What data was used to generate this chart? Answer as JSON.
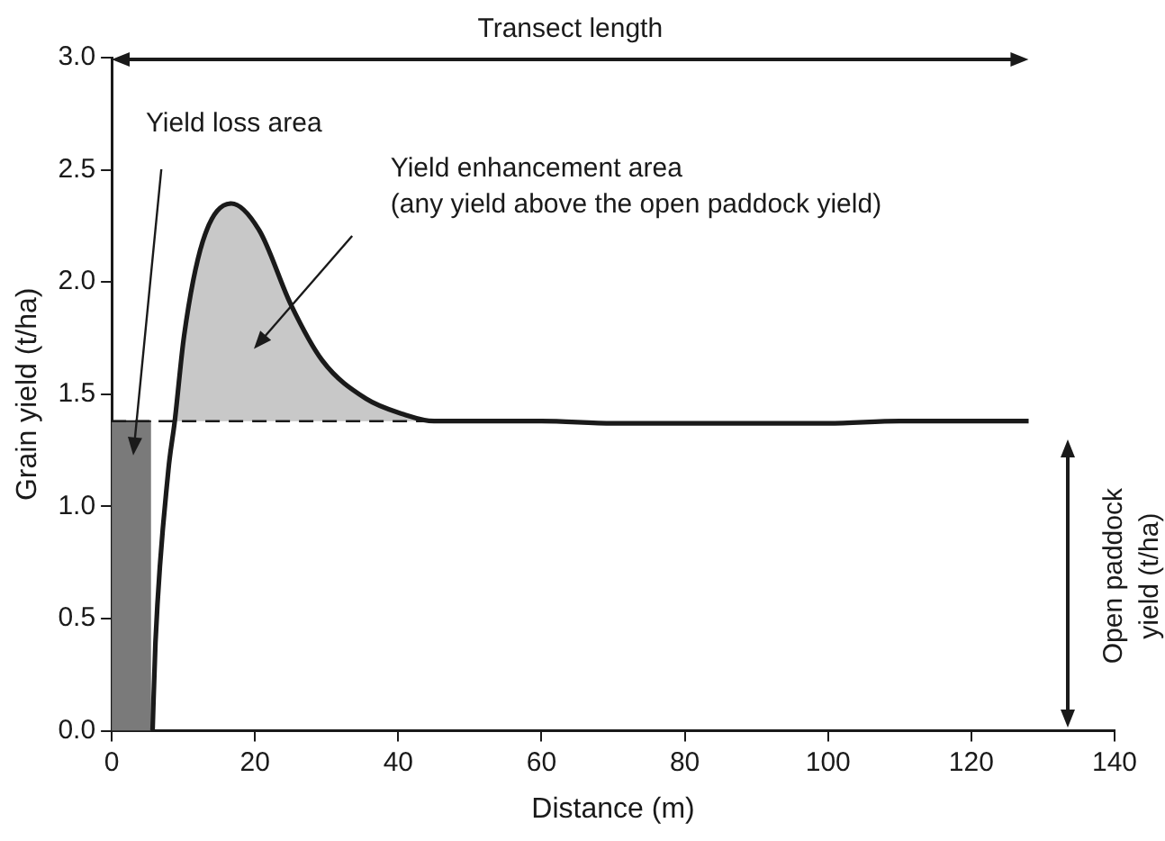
{
  "chart_data": {
    "type": "line",
    "xlabel": "Distance (m)",
    "ylabel": "Grain yield (t/ha)",
    "xlim": [
      0,
      140
    ],
    "xticks": [
      0,
      20,
      40,
      60,
      80,
      100,
      120,
      140
    ],
    "ylim": [
      0,
      3
    ],
    "yticks": [
      {
        "value": 0,
        "label": "0.0"
      },
      {
        "value": 0.5,
        "label": "0.5"
      },
      {
        "value": 1,
        "label": "1.0"
      },
      {
        "value": 1.5,
        "label": "1.5"
      },
      {
        "value": 2,
        "label": "2.0"
      },
      {
        "value": 2.5,
        "label": "2.5"
      },
      {
        "value": 3,
        "label": "3.0"
      }
    ],
    "series": [
      {
        "type": "line",
        "color": "#1a1a1a",
        "x": [
          5.7,
          6.1,
          7.9,
          8.8,
          10.1,
          12.7,
          16.7,
          20.6,
          25,
          29.4,
          35.5,
          40.8,
          45,
          60,
          70,
          80,
          90,
          100,
          110,
          120,
          128
        ],
        "values": [
          0,
          0.39,
          1.16,
          1.38,
          1.76,
          2.18,
          2.35,
          2.23,
          1.9,
          1.65,
          1.48,
          1.41,
          1.38,
          1.38,
          1.37,
          1.37,
          1.37,
          1.37,
          1.38,
          1.38,
          1.38
        ]
      },
      {
        "type": "line",
        "color": "#1a1a1a",
        "line_style": "dashed",
        "x": [
          0,
          43.9
        ],
        "values": [
          1.38,
          1.38
        ]
      },
      {
        "type": "area",
        "color": "#7a7a7a",
        "x": [
          0,
          5.5
        ],
        "values": [
          1.38,
          1.38
        ]
      },
      {
        "type": "area",
        "color": "#c8c8c8",
        "x": [
          8.8,
          10.1,
          12.7,
          16.7,
          20.6,
          25,
          29.4,
          35.5,
          40.8,
          43.9
        ],
        "values": [
          1.38,
          1.76,
          2.18,
          2.35,
          2.23,
          1.9,
          1.65,
          1.48,
          1.41,
          1.38
        ]
      }
    ],
    "annotations": [
      "Transect length",
      "Yield loss area",
      "Yield enhancement area\n(any yield above the open paddock yield)",
      "Open paddock\nyield (t/ha)"
    ],
    "grid": false,
    "legend": false,
    "marker": "none"
  }
}
